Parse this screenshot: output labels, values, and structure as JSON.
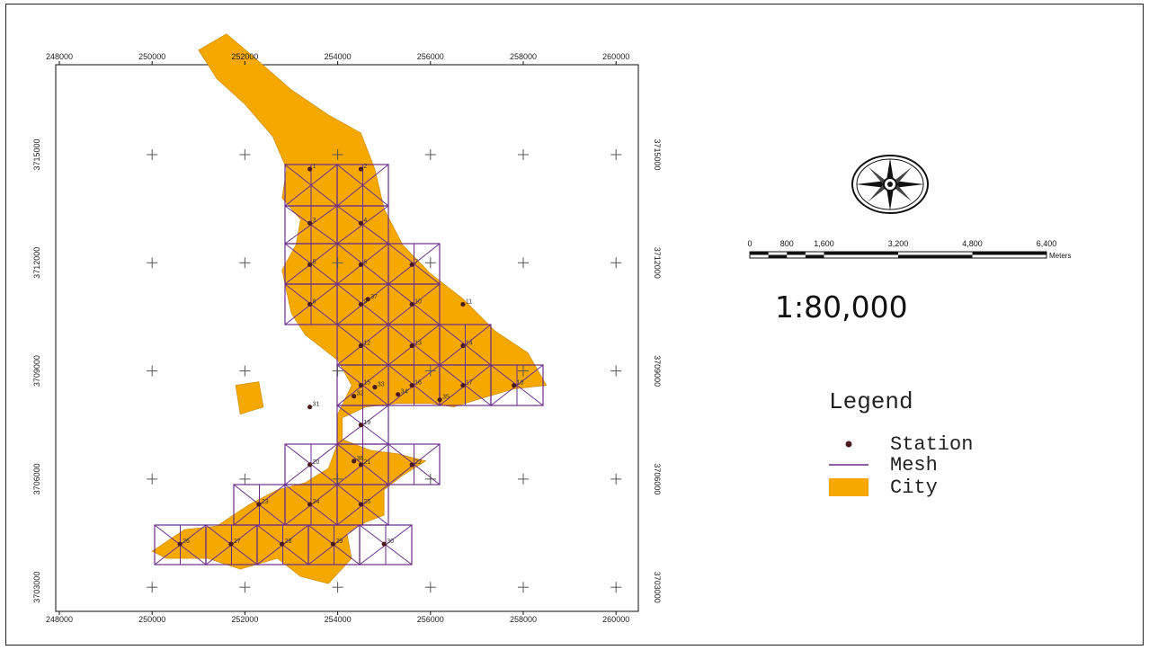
{
  "map": {
    "x_ticks": [
      "248000",
      "250000",
      "252000",
      "254000",
      "256000",
      "258000",
      "260000"
    ],
    "y_ticks": [
      "3715000",
      "3712000",
      "3709000",
      "3706000",
      "3703000"
    ],
    "stations": [
      {
        "id": "1",
        "x": 253400,
        "y": 3714600
      },
      {
        "id": "2",
        "x": 254500,
        "y": 3714600
      },
      {
        "id": "3",
        "x": 253400,
        "y": 3713100
      },
      {
        "id": "4",
        "x": 254500,
        "y": 3713100
      },
      {
        "id": "5",
        "x": 253400,
        "y": 3711950
      },
      {
        "id": "6",
        "x": 254500,
        "y": 3711950
      },
      {
        "id": "7",
        "x": 255600,
        "y": 3711950
      },
      {
        "id": "8",
        "x": 253400,
        "y": 3710850
      },
      {
        "id": "9",
        "x": 254500,
        "y": 3710850
      },
      {
        "id": "10",
        "x": 255600,
        "y": 3710850
      },
      {
        "id": "11",
        "x": 256700,
        "y": 3710850
      },
      {
        "id": "12",
        "x": 254500,
        "y": 3709700
      },
      {
        "id": "13",
        "x": 255600,
        "y": 3709700
      },
      {
        "id": "14",
        "x": 256700,
        "y": 3709700
      },
      {
        "id": "15",
        "x": 254500,
        "y": 3708600
      },
      {
        "id": "16",
        "x": 255600,
        "y": 3708600
      },
      {
        "id": "17",
        "x": 256700,
        "y": 3708600
      },
      {
        "id": "18",
        "x": 257800,
        "y": 3708600
      },
      {
        "id": "19",
        "x": 254500,
        "y": 3707500
      },
      {
        "id": "20",
        "x": 253400,
        "y": 3706400
      },
      {
        "id": "21",
        "x": 254500,
        "y": 3706400
      },
      {
        "id": "22",
        "x": 255600,
        "y": 3706400
      },
      {
        "id": "23",
        "x": 252300,
        "y": 3705300
      },
      {
        "id": "24",
        "x": 253400,
        "y": 3705300
      },
      {
        "id": "25",
        "x": 254500,
        "y": 3705300
      },
      {
        "id": "26",
        "x": 250600,
        "y": 3704200
      },
      {
        "id": "27",
        "x": 251700,
        "y": 3704200
      },
      {
        "id": "28",
        "x": 252800,
        "y": 3704200
      },
      {
        "id": "29",
        "x": 253900,
        "y": 3704200
      },
      {
        "id": "30",
        "x": 255000,
        "y": 3704200
      },
      {
        "id": "31",
        "x": 253400,
        "y": 3708000
      },
      {
        "id": "32",
        "x": 254350,
        "y": 3708300
      },
      {
        "id": "33",
        "x": 254800,
        "y": 3708550
      },
      {
        "id": "34",
        "x": 255300,
        "y": 3708350
      },
      {
        "id": "35",
        "x": 256200,
        "y": 3708200
      },
      {
        "id": "36",
        "x": 254350,
        "y": 3706500
      },
      {
        "id": "37",
        "x": 254650,
        "y": 3710990
      }
    ]
  },
  "scale_bar": {
    "labels": [
      "0",
      "800",
      "1,600",
      "3,200",
      "4,800",
      "6,400"
    ],
    "unit": "Meters",
    "ratio": "1:80,000"
  },
  "legend": {
    "title": "Legend",
    "items": [
      {
        "label": "Station",
        "symbol": "dot",
        "color": "#4a1a1a"
      },
      {
        "label": "Mesh",
        "symbol": "line",
        "color": "#6a2d8c"
      },
      {
        "label": "City",
        "symbol": "patch",
        "color": "#f5a800"
      }
    ]
  },
  "colors": {
    "city": "#f5a800",
    "mesh": "#6a2d8c",
    "station": "#4a1a1a"
  }
}
